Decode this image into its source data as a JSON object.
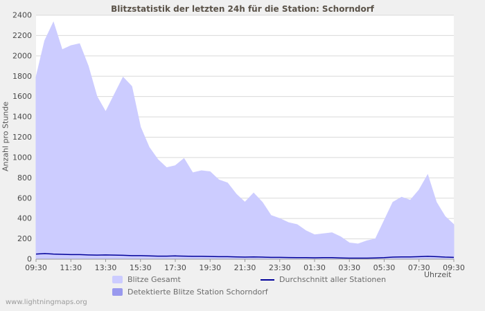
{
  "page": {
    "watermark": "www.lightningmaps.org"
  },
  "chart_data": {
    "type": "area",
    "title": "Blitzstatistik der letzten 24h für die Station: Schorndorf",
    "xlabel": "Uhrzeit",
    "ylabel": "Anzahl pro Stunde",
    "ylim": [
      0,
      2400
    ],
    "y_tick_step": 200,
    "grid": "horizontal",
    "legend_position": "bottom",
    "x_tick_labels": [
      "09:30",
      "11:30",
      "13:30",
      "15:30",
      "17:30",
      "19:30",
      "21:30",
      "23:30",
      "01:30",
      "03:30",
      "05:30",
      "07:30",
      "09:30"
    ],
    "x": [
      "09:30",
      "10:00",
      "10:30",
      "11:00",
      "11:30",
      "12:00",
      "12:30",
      "13:00",
      "13:30",
      "14:00",
      "14:30",
      "15:00",
      "15:30",
      "16:00",
      "16:30",
      "17:00",
      "17:30",
      "18:00",
      "18:30",
      "19:00",
      "19:30",
      "20:00",
      "20:30",
      "21:00",
      "21:30",
      "22:00",
      "22:30",
      "23:00",
      "23:30",
      "00:00",
      "00:30",
      "01:00",
      "01:30",
      "02:00",
      "02:30",
      "03:00",
      "03:30",
      "04:00",
      "04:30",
      "05:00",
      "05:30",
      "06:00",
      "06:30",
      "07:00",
      "07:30",
      "08:00",
      "08:30",
      "09:00",
      "09:30"
    ],
    "series": [
      {
        "name": "Blitze Gesamt",
        "type": "area",
        "color": "#ccccff",
        "values": [
          1790,
          2150,
          2330,
          2060,
          2100,
          2120,
          1900,
          1600,
          1450,
          1620,
          1790,
          1700,
          1300,
          1100,
          980,
          900,
          920,
          990,
          850,
          870,
          860,
          780,
          750,
          640,
          560,
          650,
          560,
          430,
          400,
          360,
          340,
          280,
          240,
          250,
          260,
          220,
          160,
          150,
          180,
          200,
          380,
          560,
          610,
          580,
          680,
          830,
          560,
          420,
          340
        ]
      },
      {
        "name": "Detektierte Blitze Station Schorndorf",
        "type": "area",
        "color": "#9999ee",
        "values": [
          0,
          0,
          0,
          0,
          0,
          0,
          0,
          0,
          0,
          0,
          0,
          0,
          0,
          0,
          0,
          0,
          0,
          0,
          0,
          0,
          0,
          0,
          0,
          0,
          0,
          0,
          0,
          0,
          0,
          0,
          0,
          0,
          0,
          0,
          0,
          0,
          0,
          0,
          0,
          0,
          0,
          0,
          0,
          0,
          0,
          0,
          0,
          0,
          0
        ]
      },
      {
        "name": "Durchschnitt aller Stationen",
        "type": "line",
        "color": "#000099",
        "values": [
          50,
          55,
          50,
          48,
          45,
          45,
          42,
          40,
          42,
          40,
          38,
          35,
          35,
          32,
          30,
          30,
          32,
          30,
          28,
          28,
          26,
          25,
          25,
          22,
          20,
          22,
          20,
          18,
          18,
          16,
          15,
          15,
          14,
          15,
          15,
          12,
          10,
          10,
          10,
          12,
          15,
          20,
          22,
          22,
          25,
          28,
          25,
          20,
          18
        ]
      }
    ]
  }
}
